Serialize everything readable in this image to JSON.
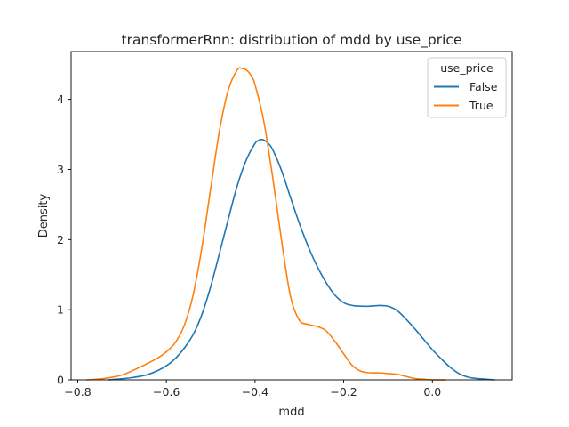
{
  "chart_data": {
    "type": "line",
    "title": "transformerRnn: distribution of mdd by use_price",
    "xlabel": "mdd",
    "ylabel": "Density",
    "xlim": [
      -0.815,
      0.18
    ],
    "ylim": [
      0,
      4.68
    ],
    "xticks": [
      -0.8,
      -0.6,
      -0.4,
      -0.2,
      0.0
    ],
    "xtick_labels": [
      "−0.8",
      "−0.6",
      "−0.4",
      "−0.2",
      "0.0"
    ],
    "yticks": [
      0,
      1,
      2,
      3,
      4
    ],
    "ytick_labels": [
      "0",
      "1",
      "2",
      "3",
      "4"
    ],
    "grid": false,
    "legend": {
      "title": "use_price",
      "placement": "top-right"
    },
    "series": [
      {
        "name": "False",
        "color": "#1f77b4",
        "x": [
          -0.73,
          -0.68,
          -0.64,
          -0.6,
          -0.57,
          -0.54,
          -0.52,
          -0.5,
          -0.48,
          -0.46,
          -0.44,
          -0.42,
          -0.4,
          -0.39,
          -0.38,
          -0.37,
          -0.36,
          -0.34,
          -0.32,
          -0.3,
          -0.28,
          -0.26,
          -0.24,
          -0.22,
          -0.2,
          -0.18,
          -0.16,
          -0.14,
          -0.12,
          -0.1,
          -0.08,
          -0.06,
          -0.04,
          -0.02,
          0.0,
          0.02,
          0.04,
          0.06,
          0.08,
          0.1,
          0.12,
          0.14
        ],
        "y": [
          0.0,
          0.03,
          0.08,
          0.2,
          0.37,
          0.64,
          0.93,
          1.33,
          1.81,
          2.3,
          2.77,
          3.13,
          3.37,
          3.42,
          3.42,
          3.37,
          3.28,
          2.98,
          2.6,
          2.23,
          1.9,
          1.62,
          1.39,
          1.21,
          1.1,
          1.06,
          1.05,
          1.05,
          1.06,
          1.05,
          0.99,
          0.87,
          0.73,
          0.58,
          0.43,
          0.3,
          0.18,
          0.09,
          0.04,
          0.02,
          0.01,
          0.0
        ]
      },
      {
        "name": "True",
        "color": "#ff7f0e",
        "x": [
          -0.78,
          -0.74,
          -0.7,
          -0.66,
          -0.62,
          -0.6,
          -0.58,
          -0.56,
          -0.54,
          -0.52,
          -0.5,
          -0.48,
          -0.46,
          -0.44,
          -0.43,
          -0.42,
          -0.41,
          -0.4,
          -0.38,
          -0.36,
          -0.34,
          -0.32,
          -0.3,
          -0.28,
          -0.26,
          -0.24,
          -0.22,
          -0.2,
          -0.18,
          -0.16,
          -0.14,
          -0.12,
          -0.1,
          -0.08,
          -0.06,
          -0.04,
          -0.02,
          0.0,
          0.03
        ],
        "y": [
          0.0,
          0.02,
          0.07,
          0.18,
          0.31,
          0.4,
          0.53,
          0.77,
          1.2,
          1.88,
          2.73,
          3.56,
          4.14,
          4.42,
          4.44,
          4.42,
          4.35,
          4.21,
          3.68,
          2.88,
          1.98,
          1.19,
          0.85,
          0.79,
          0.76,
          0.7,
          0.55,
          0.37,
          0.2,
          0.12,
          0.1,
          0.1,
          0.09,
          0.08,
          0.05,
          0.02,
          0.01,
          0.0,
          0.0
        ]
      }
    ]
  }
}
